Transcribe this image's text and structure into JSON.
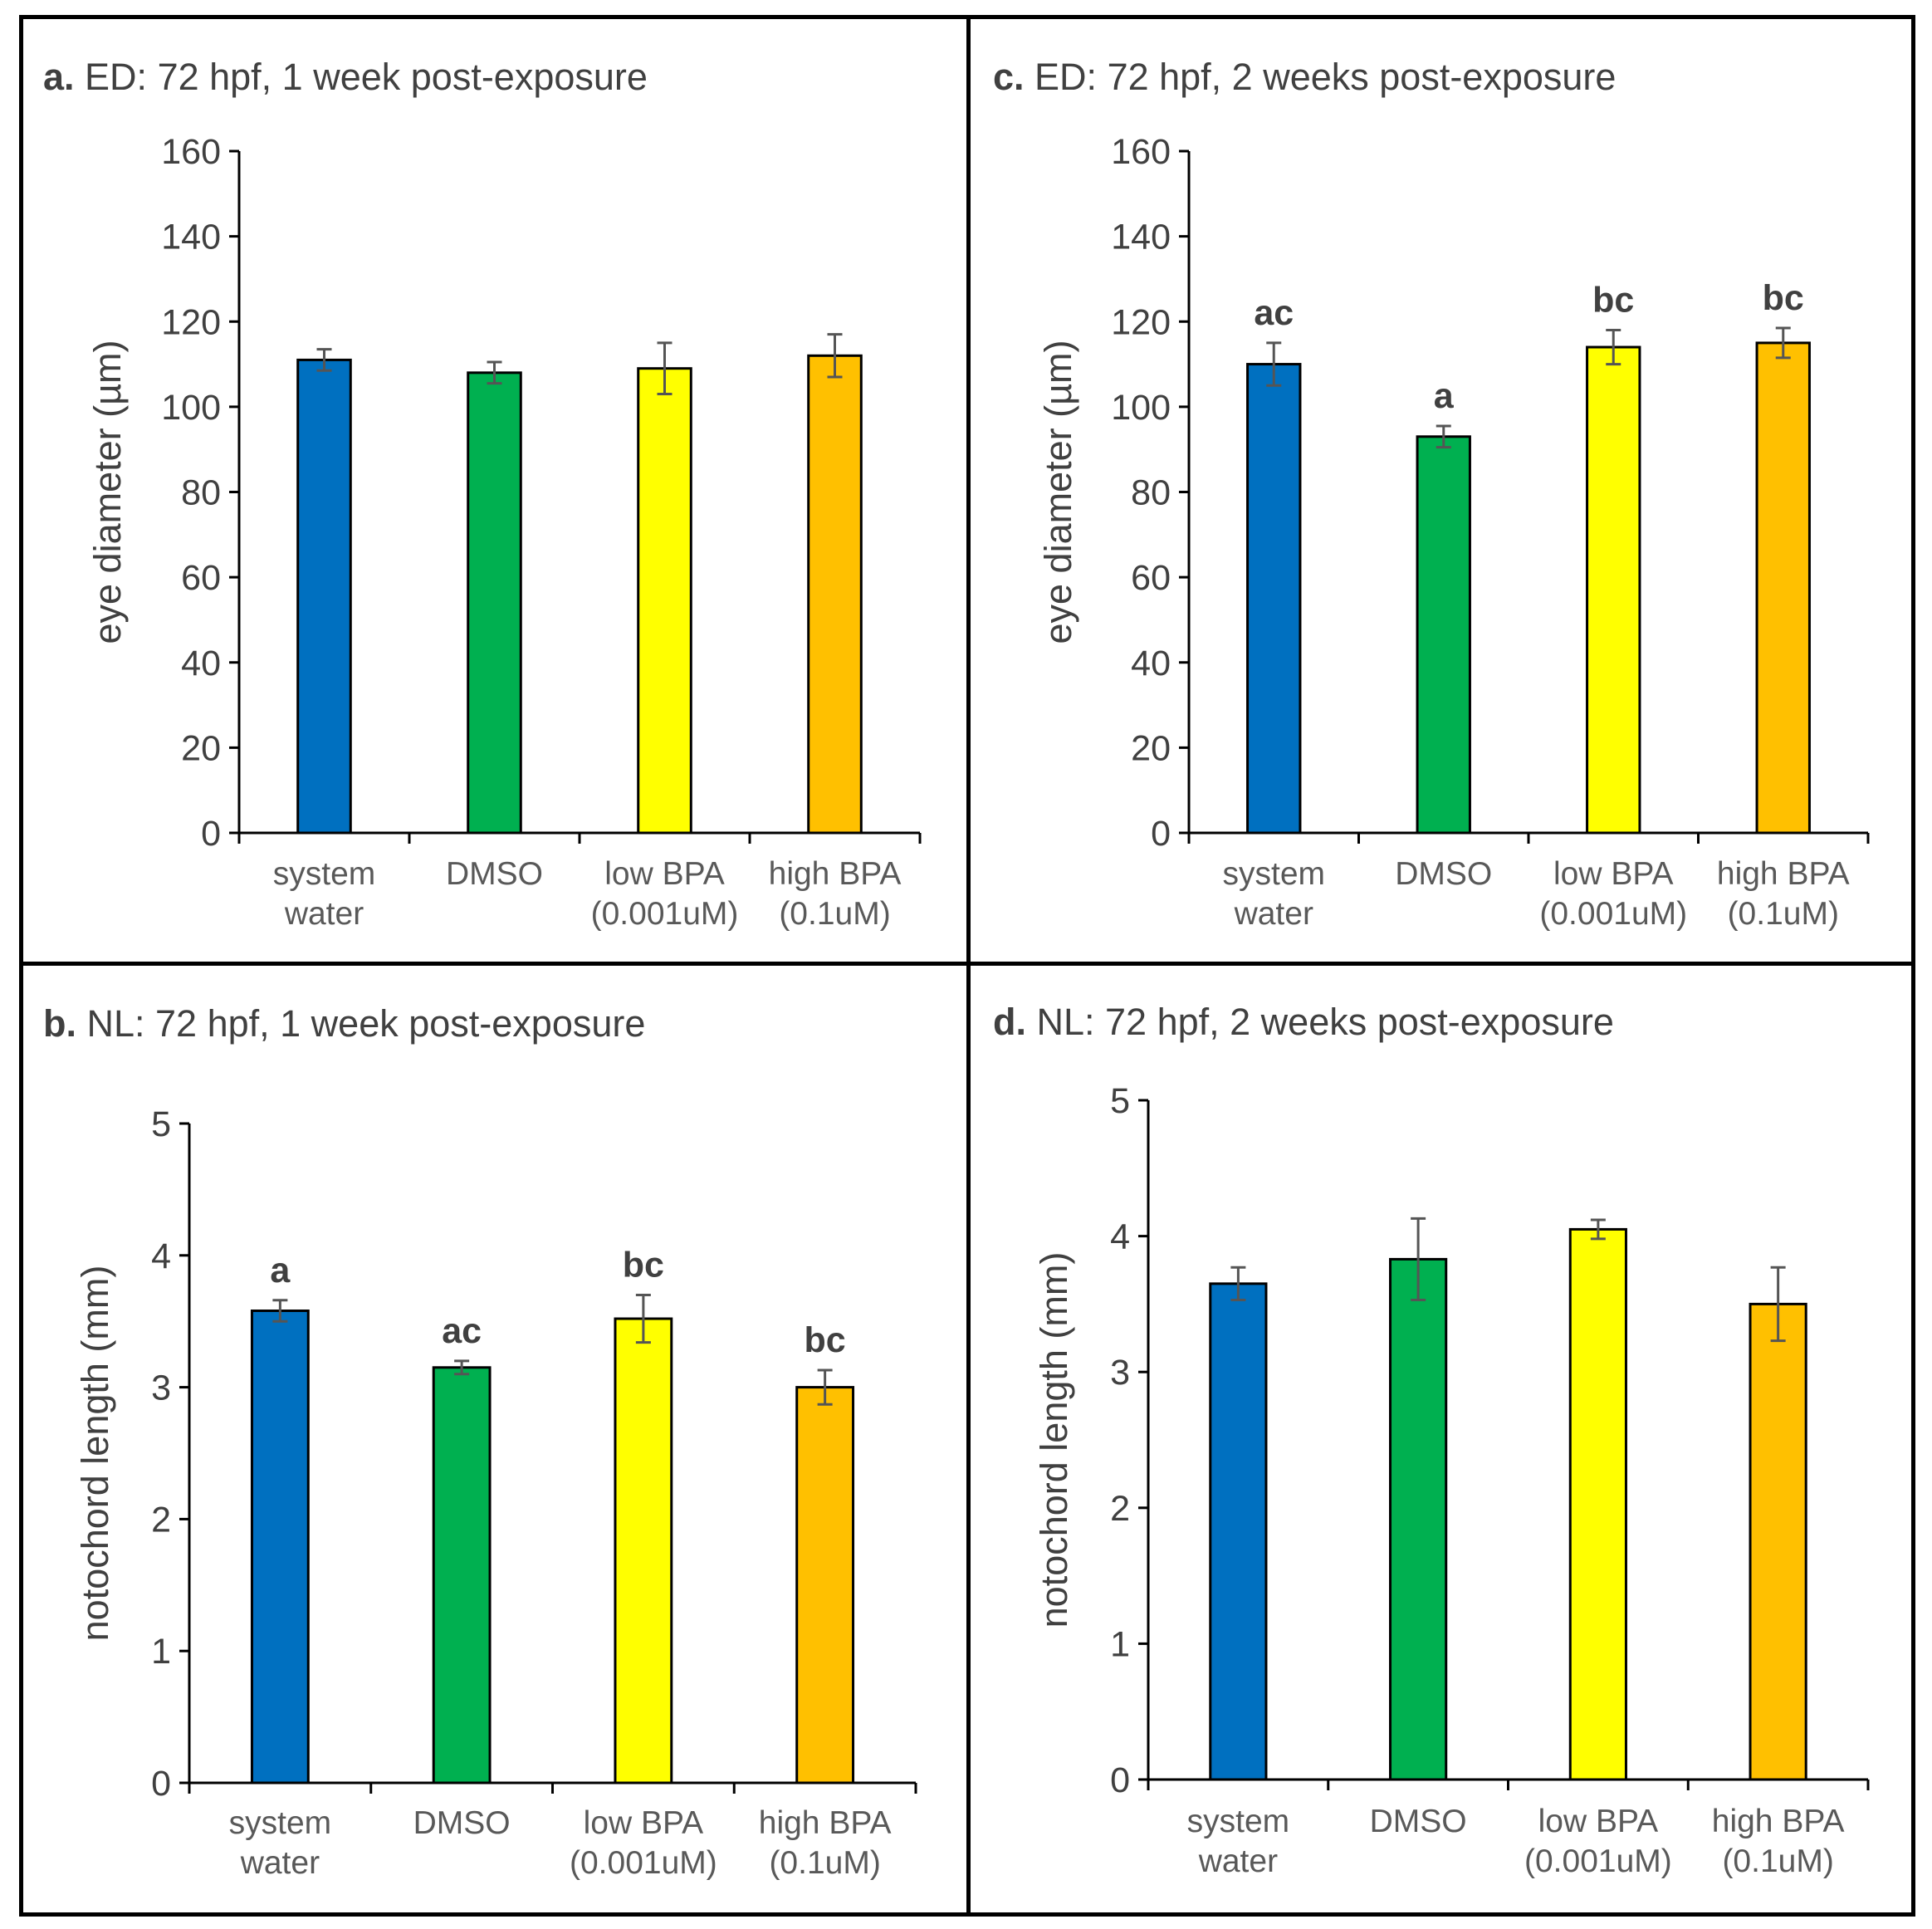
{
  "figure": {
    "categories": [
      [
        "system",
        "water"
      ],
      [
        "DMSO",
        ""
      ],
      [
        "low BPA",
        "(0.001uM)"
      ],
      [
        "high BPA",
        "(0.1uM)"
      ]
    ],
    "colors": [
      "#0070C0",
      "#00B050",
      "#FFFF00",
      "#FFC000"
    ]
  },
  "chart_data": [
    {
      "id": "a",
      "type": "bar",
      "letter": "a.",
      "title": "ED: 72 hpf, 1 week post-exposure",
      "ylabel": "eye diameter (µm)",
      "ylim": [
        0,
        160
      ],
      "yticks": [
        0,
        20,
        40,
        60,
        80,
        100,
        120,
        140,
        160
      ],
      "categories": [
        "system water",
        "DMSO",
        "low BPA (0.001uM)",
        "high BPA (0.1uM)"
      ],
      "values": [
        111,
        108,
        109,
        112
      ],
      "errors": [
        2.5,
        2.5,
        6,
        5
      ],
      "significance": [
        "",
        "",
        "",
        ""
      ]
    },
    {
      "id": "b",
      "type": "bar",
      "letter": "b.",
      "title": "NL: 72 hpf, 1 week post-exposure",
      "ylabel": "notochord length (mm)",
      "ylim": [
        0,
        5
      ],
      "yticks": [
        0,
        1,
        2,
        3,
        4,
        5
      ],
      "categories": [
        "system water",
        "DMSO",
        "low BPA (0.001uM)",
        "high BPA (0.1uM)"
      ],
      "values": [
        3.58,
        3.15,
        3.52,
        3.0
      ],
      "errors": [
        0.08,
        0.05,
        0.18,
        0.13
      ],
      "significance": [
        "a",
        "ac",
        "bc",
        "bc"
      ]
    },
    {
      "id": "c",
      "type": "bar",
      "letter": "c.",
      "title": "ED: 72 hpf, 2 weeks post-exposure",
      "ylabel": "eye diameter (µm)",
      "ylim": [
        0,
        160
      ],
      "yticks": [
        0,
        20,
        40,
        60,
        80,
        100,
        120,
        140,
        160
      ],
      "categories": [
        "system water",
        "DMSO",
        "low BPA (0.001uM)",
        "high BPA (0.1uM)"
      ],
      "values": [
        110,
        93,
        114,
        115
      ],
      "errors": [
        5,
        2.5,
        4,
        3.5
      ],
      "significance": [
        "ac",
        "a",
        "bc",
        "bc"
      ]
    },
    {
      "id": "d",
      "type": "bar",
      "letter": "d.",
      "title": "NL: 72 hpf, 2 weeks post-exposure",
      "ylabel": "notochord length (mm)",
      "ylim": [
        0,
        5
      ],
      "yticks": [
        0,
        1,
        2,
        3,
        4,
        5
      ],
      "categories": [
        "system water",
        "DMSO",
        "low BPA (0.001uM)",
        "high BPA (0.1uM)"
      ],
      "values": [
        3.65,
        3.83,
        4.05,
        3.5
      ],
      "errors": [
        0.12,
        0.3,
        0.07,
        0.27
      ],
      "significance": [
        "",
        "",
        "",
        ""
      ]
    }
  ]
}
